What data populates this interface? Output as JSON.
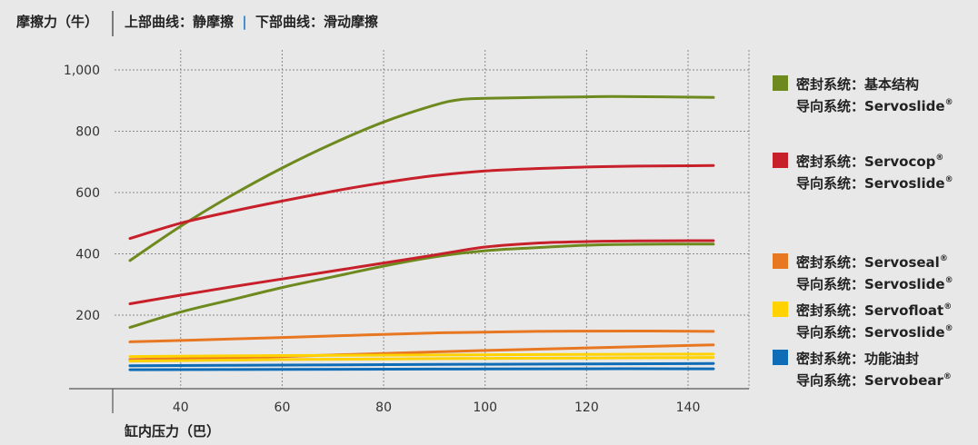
{
  "chart_data": {
    "type": "line",
    "ylabel": "摩擦力（牛）",
    "xlabel": "缸内压力（巴）",
    "header": {
      "part1": "上部曲线：静摩擦",
      "separator": "|",
      "part2": "下部曲线：滑动摩擦"
    },
    "separator_color": "#2a7fc4",
    "x_ticks": [
      40,
      60,
      80,
      100,
      120,
      140
    ],
    "y_ticks": [
      200,
      400,
      600,
      800,
      1000
    ],
    "y_tick_labels": [
      "200",
      "400",
      "600",
      "800",
      "1,000"
    ],
    "xlim": [
      18,
      152
    ],
    "ylim": [
      -40,
      1065
    ],
    "grid": true,
    "legend_position": "right",
    "series": [
      {
        "color": "#6e8a1f",
        "kind": "static",
        "points": [
          [
            30,
            378
          ],
          [
            40,
            490
          ],
          [
            50,
            590
          ],
          [
            60,
            680
          ],
          [
            70,
            760
          ],
          [
            80,
            830
          ],
          [
            90,
            885
          ],
          [
            95,
            903
          ],
          [
            100,
            907
          ],
          [
            110,
            910
          ],
          [
            120,
            912
          ],
          [
            125,
            913
          ],
          [
            135,
            912
          ],
          [
            145,
            910
          ]
        ]
      },
      {
        "color": "#6e8a1f",
        "kind": "sliding",
        "points": [
          [
            30,
            160
          ],
          [
            40,
            210
          ],
          [
            50,
            250
          ],
          [
            60,
            290
          ],
          [
            70,
            325
          ],
          [
            80,
            360
          ],
          [
            90,
            390
          ],
          [
            100,
            410
          ],
          [
            110,
            420
          ],
          [
            120,
            428
          ],
          [
            130,
            431
          ],
          [
            145,
            432
          ]
        ]
      },
      {
        "color": "#c8202a",
        "kind": "static",
        "points": [
          [
            30,
            450
          ],
          [
            40,
            500
          ],
          [
            50,
            538
          ],
          [
            60,
            572
          ],
          [
            70,
            604
          ],
          [
            80,
            632
          ],
          [
            90,
            655
          ],
          [
            100,
            670
          ],
          [
            110,
            678
          ],
          [
            120,
            683
          ],
          [
            130,
            686
          ],
          [
            145,
            688
          ]
        ]
      },
      {
        "color": "#c8202a",
        "kind": "sliding",
        "points": [
          [
            30,
            237
          ],
          [
            40,
            265
          ],
          [
            50,
            292
          ],
          [
            60,
            318
          ],
          [
            70,
            344
          ],
          [
            80,
            370
          ],
          [
            90,
            396
          ],
          [
            100,
            422
          ],
          [
            110,
            435
          ],
          [
            120,
            440
          ],
          [
            130,
            442
          ],
          [
            145,
            443
          ]
        ]
      },
      {
        "color": "#e87722",
        "kind": "static",
        "points": [
          [
            30,
            113
          ],
          [
            50,
            122
          ],
          [
            70,
            132
          ],
          [
            90,
            142
          ],
          [
            110,
            147
          ],
          [
            130,
            148
          ],
          [
            145,
            147
          ]
        ]
      },
      {
        "color": "#e87722",
        "kind": "sliding",
        "points": [
          [
            30,
            55
          ],
          [
            60,
            65
          ],
          [
            90,
            80
          ],
          [
            120,
            93
          ],
          [
            145,
            103
          ]
        ]
      },
      {
        "color": "#ffd200",
        "kind": "static",
        "points": [
          [
            30,
            65
          ],
          [
            60,
            68
          ],
          [
            90,
            70
          ],
          [
            120,
            72
          ],
          [
            145,
            73
          ]
        ]
      },
      {
        "color": "#ffd200",
        "kind": "sliding",
        "points": [
          [
            30,
            50
          ],
          [
            60,
            55
          ],
          [
            90,
            58
          ],
          [
            120,
            60
          ],
          [
            145,
            62
          ]
        ]
      },
      {
        "color": "#0f6db8",
        "kind": "static",
        "points": [
          [
            30,
            35
          ],
          [
            60,
            37
          ],
          [
            90,
            39
          ],
          [
            120,
            41
          ],
          [
            145,
            42
          ]
        ]
      },
      {
        "color": "#0f6db8",
        "kind": "sliding",
        "points": [
          [
            30,
            22
          ],
          [
            60,
            23
          ],
          [
            90,
            24
          ],
          [
            120,
            25
          ],
          [
            145,
            25
          ]
        ]
      }
    ],
    "legend": [
      {
        "color": "#6e8a1f",
        "line1": "密封系统：基本结构",
        "line1_sup": "",
        "line2": "导向系统：Servoslide",
        "line2_sup": "®"
      },
      {
        "color": "#c8202a",
        "line1": "密封系统：Servocop",
        "line1_sup": "®",
        "line2": "导向系统：Servoslide",
        "line2_sup": "®"
      },
      {
        "color": "#e87722",
        "line1": "密封系统：Servoseal",
        "line1_sup": "®",
        "line2": "导向系统：Servoslide",
        "line2_sup": "®"
      },
      {
        "color": "#ffd200",
        "line1": "密封系统：Servofloat",
        "line1_sup": "®",
        "line2": "导向系统：Servoslide",
        "line2_sup": "®"
      },
      {
        "color": "#0f6db8",
        "line1": "密封系统：功能油封",
        "line1_sup": "",
        "line2": "导向系统：Servobear",
        "line2_sup": "®"
      }
    ]
  }
}
